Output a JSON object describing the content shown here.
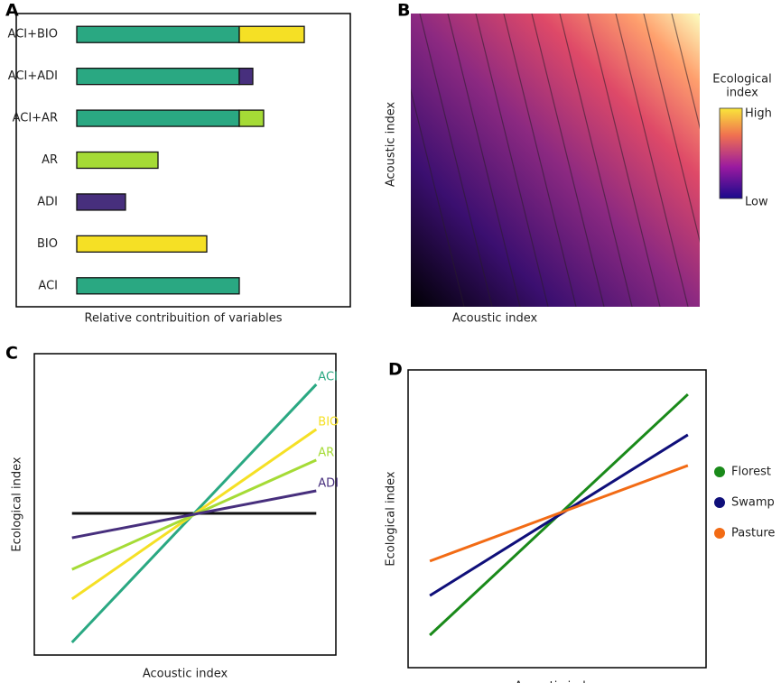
{
  "chart_data": [
    {
      "type": "bar",
      "label": "A",
      "orientation": "horizontal",
      "stacked": true,
      "xlabel": "Relative contribuition of variables",
      "categories": [
        "ACI+BIO",
        "ACI+ADI",
        "ACI+AR",
        "AR",
        "ADI",
        "BIO",
        "ACI"
      ],
      "series": [
        {
          "name": "ACI",
          "color": "#2aa882",
          "values": [
            18,
            18,
            18,
            null,
            null,
            null,
            18
          ]
        },
        {
          "name": "BIO",
          "color": "#f5e025",
          "values": [
            7.2,
            null,
            null,
            null,
            null,
            14.4,
            null
          ]
        },
        {
          "name": "ADI",
          "color": "#472f7d",
          "values": [
            null,
            1.5,
            null,
            null,
            5.4,
            null,
            null
          ]
        },
        {
          "name": "AR",
          "color": "#a5db36",
          "values": [
            null,
            null,
            2.7,
            9,
            null,
            null,
            null
          ]
        }
      ],
      "xlim": [
        0,
        30
      ]
    },
    {
      "type": "heatmap",
      "label": "B",
      "xlabel": "Acoustic index",
      "ylabel": "Acoustic index",
      "colorbar_title": [
        "Ecological",
        "index"
      ],
      "colorbar_labels": [
        "High",
        "Low"
      ]
    },
    {
      "type": "line",
      "label": "C",
      "xlabel": "Acoustic index",
      "ylabel": "Ecological index",
      "x": [
        1.25,
        9.35
      ],
      "xlim": [
        0,
        10
      ],
      "ylim": [
        0,
        10
      ],
      "line_labels": true,
      "series": [
        {
          "color": "#111111",
          "values": [
            4.7,
            4.7
          ]
        },
        {
          "name": "ACI",
          "color": "#2aa882",
          "values": [
            0.42,
            8.98
          ]
        },
        {
          "name": "BIO",
          "color": "#f5e025",
          "values": [
            1.86,
            7.49
          ]
        },
        {
          "name": "AR",
          "color": "#a5db36",
          "values": [
            2.84,
            6.47
          ]
        },
        {
          "name": "ADI",
          "color": "#472f7d",
          "values": [
            3.89,
            5.45
          ]
        }
      ]
    },
    {
      "type": "line",
      "label": "D",
      "xlabel": "Acoustic index",
      "ylabel": "Ecological index",
      "x": [
        0.73,
        9.39
      ],
      "xlim": [
        0,
        10
      ],
      "ylim": [
        0,
        10
      ],
      "legend": "right",
      "series": [
        {
          "name": "Florest",
          "color": "#1a8a1a",
          "values": [
            1.09,
            9.18
          ]
        },
        {
          "name": "Swamp",
          "color": "#0f0f7a",
          "values": [
            2.42,
            7.82
          ]
        },
        {
          "name": "Pasture",
          "color": "#f26b15",
          "values": [
            3.58,
            6.79
          ]
        }
      ]
    }
  ]
}
